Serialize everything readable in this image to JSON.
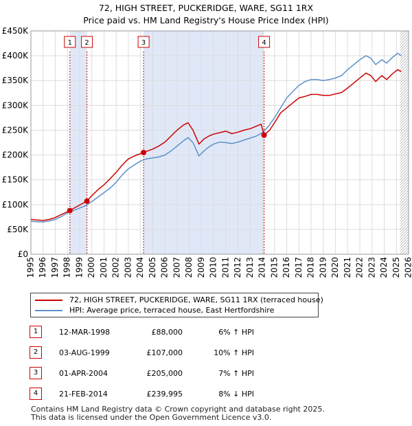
{
  "title_line1": "72, HIGH STREET, PUCKERIDGE, WARE, SG11 1RX",
  "title_line2": "Price paid vs. HM Land Registry's House Price Index (HPI)",
  "colors": {
    "property": "#cc0000",
    "hpi": "#5b8fc9",
    "shade": "#dde5f7",
    "grid": "#dcdcdc",
    "marker": "#cc0000"
  },
  "legend": {
    "property_label": "72, HIGH STREET, PUCKERIDGE, WARE, SG11 1RX (terraced house)",
    "hpi_label": "HPI: Average price, terraced house, East Hertfordshire"
  },
  "sales": [
    {
      "num": "1",
      "date": "12-MAR-1998",
      "price": "£88,000",
      "hpi": "6% ↑ HPI"
    },
    {
      "num": "2",
      "date": "03-AUG-1999",
      "price": "£107,000",
      "hpi": "10% ↑ HPI"
    },
    {
      "num": "3",
      "date": "01-APR-2004",
      "price": "£205,000",
      "hpi": "7% ↑ HPI"
    },
    {
      "num": "4",
      "date": "21-FEB-2014",
      "price": "£239,995",
      "hpi": "8% ↓ HPI"
    }
  ],
  "footer_line1": "Contains HM Land Registry data © Crown copyright and database right 2025.",
  "footer_line2": "This data is licensed under the Open Government Licence v3.0.",
  "chart_data": {
    "type": "line",
    "title": "72, HIGH STREET, PUCKERIDGE, WARE, SG11 1RX",
    "subtitle": "Price paid vs. HM Land Registry's House Price Index (HPI)",
    "xlabel": "",
    "ylabel": "",
    "xlim": [
      1995,
      2026
    ],
    "ylim": [
      0,
      450000
    ],
    "grid": true,
    "x_ticks": [
      1995,
      1996,
      1997,
      1998,
      1999,
      2000,
      2001,
      2002,
      2003,
      2004,
      2005,
      2006,
      2007,
      2008,
      2009,
      2010,
      2011,
      2012,
      2013,
      2014,
      2015,
      2016,
      2017,
      2018,
      2019,
      2020,
      2021,
      2022,
      2023,
      2024,
      2025,
      2026
    ],
    "y_ticks": [
      {
        "value": 0,
        "label": "£0"
      },
      {
        "value": 50000,
        "label": "£50K"
      },
      {
        "value": 100000,
        "label": "£100K"
      },
      {
        "value": 150000,
        "label": "£150K"
      },
      {
        "value": 200000,
        "label": "£200K"
      },
      {
        "value": 250000,
        "label": "£250K"
      },
      {
        "value": 300000,
        "label": "£300K"
      },
      {
        "value": 350000,
        "label": "£350K"
      },
      {
        "value": 400000,
        "label": "£400K"
      },
      {
        "value": 450000,
        "label": "£450K"
      }
    ],
    "shaded_ranges": [
      [
        1998.2,
        1999.6
      ],
      [
        2004.25,
        2014.14
      ]
    ],
    "future_hatch_from": 2025.3,
    "series": [
      {
        "name": "72, HIGH STREET, PUCKERIDGE, WARE, SG11 1RX (terraced house)",
        "x": [
          1995,
          1995.5,
          1996,
          1996.5,
          1997,
          1997.5,
          1998.2,
          1998.7,
          1999.6,
          2000,
          2000.5,
          2001,
          2001.5,
          2002,
          2002.5,
          2003,
          2003.5,
          2004.25,
          2005,
          2005.5,
          2006,
          2006.5,
          2007,
          2007.5,
          2007.9,
          2008.3,
          2008.8,
          2009.2,
          2009.6,
          2010,
          2010.5,
          2011,
          2011.5,
          2012,
          2012.5,
          2013,
          2013.5,
          2013.9,
          2014.14,
          2014.6,
          2015,
          2015.5,
          2016,
          2016.5,
          2017,
          2017.5,
          2018,
          2018.5,
          2019,
          2019.5,
          2020,
          2020.5,
          2021,
          2021.5,
          2022,
          2022.5,
          2022.9,
          2023.3,
          2023.8,
          2024.2,
          2024.6,
          2025.1,
          2025.4
        ],
        "values": [
          70000,
          69000,
          68000,
          70000,
          74000,
          80000,
          88000,
          95000,
          107000,
          118000,
          130000,
          140000,
          152000,
          165000,
          180000,
          192000,
          198000,
          205000,
          212000,
          218000,
          226000,
          238000,
          250000,
          260000,
          265000,
          250000,
          222000,
          232000,
          238000,
          242000,
          245000,
          248000,
          243000,
          246000,
          250000,
          253000,
          258000,
          262000,
          239995,
          250000,
          265000,
          285000,
          295000,
          305000,
          315000,
          318000,
          322000,
          322000,
          320000,
          320000,
          323000,
          326000,
          335000,
          345000,
          355000,
          365000,
          360000,
          348000,
          360000,
          352000,
          362000,
          372000,
          368000
        ]
      },
      {
        "name": "HPI: Average price, terraced house, East Hertfordshire",
        "x": [
          1995,
          1995.5,
          1996,
          1996.5,
          1997,
          1997.5,
          1998,
          1998.5,
          1999,
          1999.5,
          2000,
          2000.5,
          2001,
          2001.5,
          2002,
          2002.5,
          2003,
          2003.5,
          2004,
          2004.5,
          2005,
          2005.5,
          2006,
          2006.5,
          2007,
          2007.5,
          2007.9,
          2008.3,
          2008.8,
          2009.2,
          2009.6,
          2010,
          2010.5,
          2011,
          2011.5,
          2012,
          2012.5,
          2013,
          2013.5,
          2014,
          2014.5,
          2015,
          2015.5,
          2016,
          2016.5,
          2017,
          2017.5,
          2018,
          2018.5,
          2019,
          2019.5,
          2020,
          2020.5,
          2021,
          2021.5,
          2022,
          2022.5,
          2022.9,
          2023.3,
          2023.8,
          2024.2,
          2024.6,
          2025.1,
          2025.4
        ],
        "values": [
          66000,
          65500,
          65000,
          67000,
          70000,
          76000,
          83000,
          88000,
          93000,
          98000,
          106000,
          115000,
          124000,
          133000,
          145000,
          160000,
          172000,
          180000,
          188000,
          192000,
          194000,
          196000,
          200000,
          208000,
          218000,
          228000,
          235000,
          225000,
          198000,
          208000,
          216000,
          222000,
          226000,
          225000,
          223000,
          226000,
          230000,
          234000,
          238000,
          245000,
          258000,
          275000,
          295000,
          315000,
          328000,
          340000,
          348000,
          352000,
          352000,
          350000,
          352000,
          355000,
          360000,
          372000,
          382000,
          392000,
          400000,
          395000,
          382000,
          392000,
          385000,
          395000,
          405000,
          400000
        ]
      }
    ],
    "sale_markers": [
      {
        "label": "1",
        "x": 1998.2,
        "value": 88000
      },
      {
        "label": "2",
        "x": 1999.6,
        "value": 107000
      },
      {
        "label": "3",
        "x": 2004.25,
        "value": 205000
      },
      {
        "label": "4",
        "x": 2014.14,
        "value": 239995
      }
    ]
  }
}
